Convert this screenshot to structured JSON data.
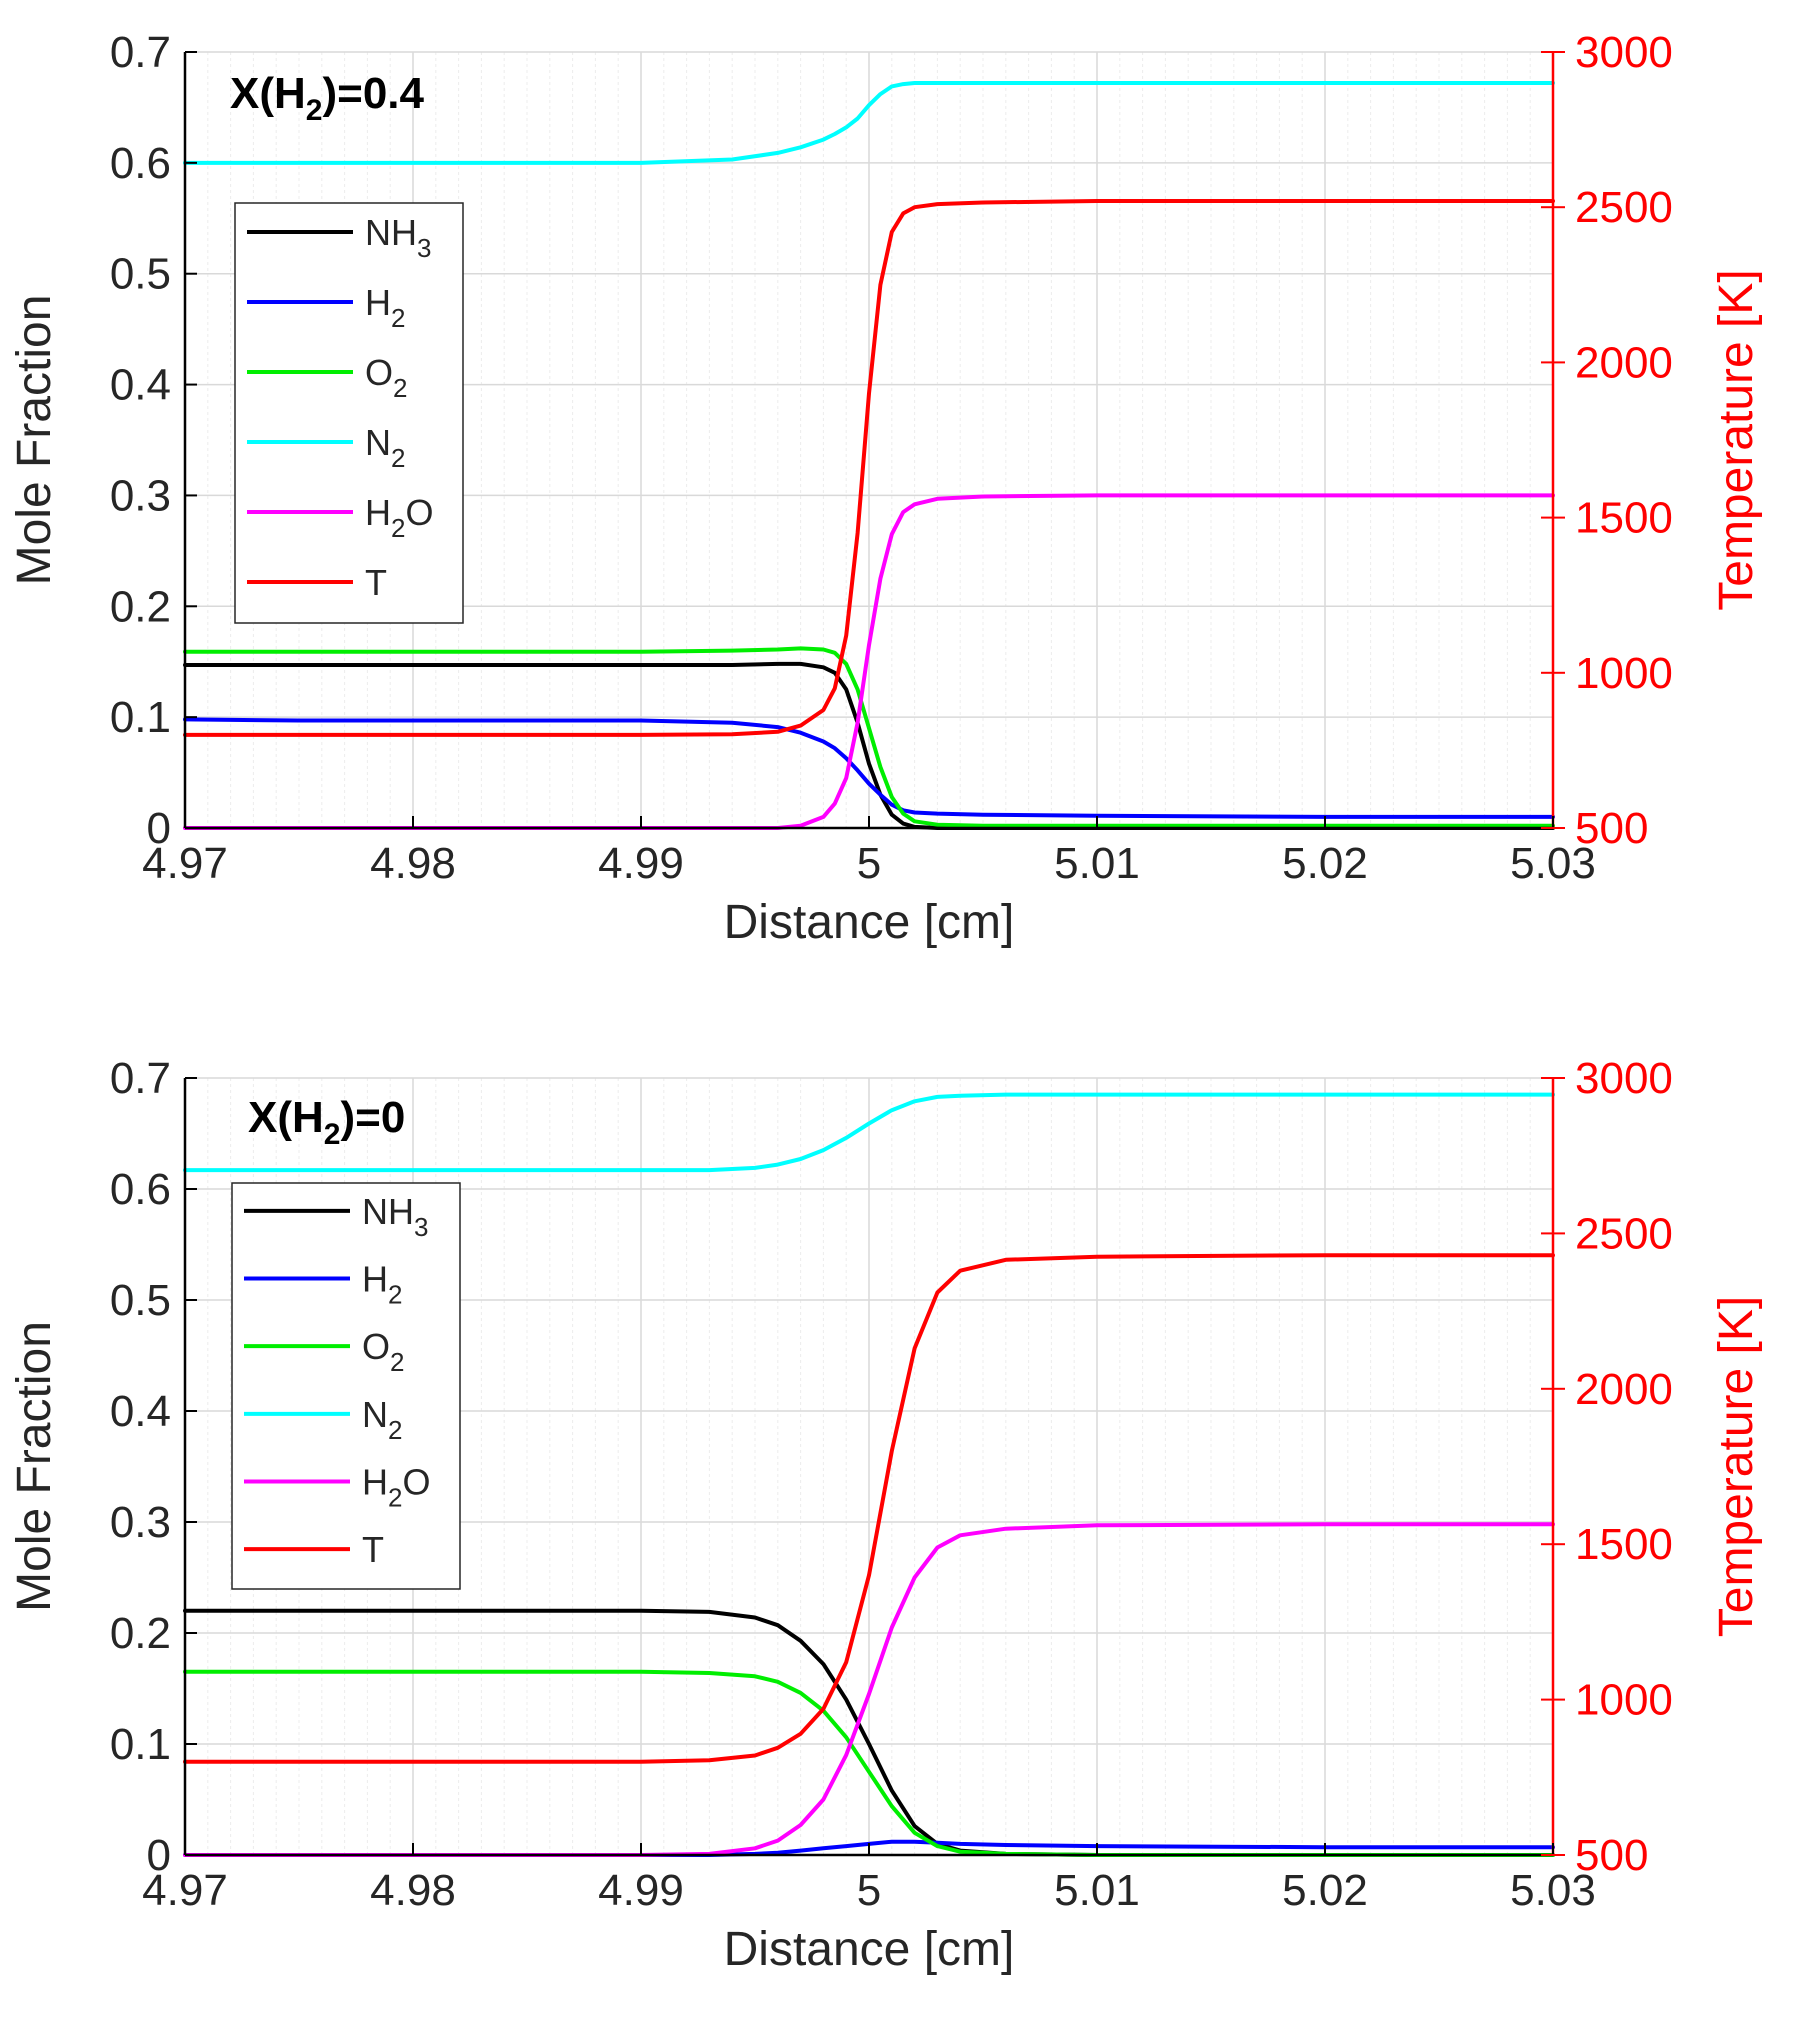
{
  "chart_data": [
    {
      "type": "line",
      "annotation": {
        "prefix": "X(H",
        "sub": "2",
        "suffix": ")=0.4"
      },
      "xlabel": "Distance [cm]",
      "ylabel": "Mole Fraction",
      "ylabel_right": "Temperature [K]",
      "xlim": [
        4.97,
        5.03
      ],
      "ylim": [
        0,
        0.7
      ],
      "ylim_right": [
        500,
        3000
      ],
      "x_ticks": [
        4.97,
        4.98,
        4.99,
        5.0,
        5.01,
        5.02,
        5.03
      ],
      "x_tick_labels": [
        "4.97",
        "4.98",
        "4.99",
        "5",
        "5.01",
        "5.02",
        "5.03"
      ],
      "y_ticks": [
        0,
        0.1,
        0.2,
        0.3,
        0.4,
        0.5,
        0.6,
        0.7
      ],
      "y_tick_labels": [
        "0",
        "0.1",
        "0.2",
        "0.3",
        "0.4",
        "0.5",
        "0.6",
        "0.7"
      ],
      "y_right_ticks": [
        500,
        1000,
        1500,
        2000,
        2500,
        3000
      ],
      "y_right_tick_labels": [
        "500",
        "1000",
        "1500",
        "2000",
        "2500",
        "3000"
      ],
      "grid": true,
      "legend_position": "upper-left",
      "x": [
        4.97,
        4.975,
        4.98,
        4.985,
        4.99,
        4.994,
        4.996,
        4.997,
        4.998,
        4.9985,
        4.999,
        4.9995,
        5.0,
        5.0005,
        5.001,
        5.0015,
        5.002,
        5.003,
        5.005,
        5.01,
        5.02,
        5.03
      ],
      "series": [
        {
          "name": "NH",
          "sub": "3",
          "tail": "",
          "axis": "left",
          "color": "#000000",
          "values": [
            0.147,
            0.147,
            0.147,
            0.147,
            0.147,
            0.147,
            0.148,
            0.148,
            0.145,
            0.14,
            0.125,
            0.095,
            0.058,
            0.03,
            0.012,
            0.004,
            0.001,
            0.0,
            0.0,
            0.0,
            0.0,
            0.0
          ]
        },
        {
          "name": "H",
          "sub": "2",
          "tail": "",
          "axis": "left",
          "color": "#0000ff",
          "values": [
            0.098,
            0.097,
            0.097,
            0.097,
            0.097,
            0.095,
            0.091,
            0.086,
            0.078,
            0.072,
            0.063,
            0.052,
            0.04,
            0.03,
            0.021,
            0.016,
            0.014,
            0.013,
            0.012,
            0.011,
            0.01,
            0.01
          ]
        },
        {
          "name": "O",
          "sub": "2",
          "tail": "",
          "axis": "left",
          "color": "#00ee00",
          "values": [
            0.159,
            0.159,
            0.159,
            0.159,
            0.159,
            0.16,
            0.161,
            0.162,
            0.161,
            0.158,
            0.148,
            0.125,
            0.09,
            0.055,
            0.028,
            0.013,
            0.006,
            0.003,
            0.002,
            0.002,
            0.002,
            0.002
          ]
        },
        {
          "name": "N",
          "sub": "2",
          "tail": "",
          "axis": "left",
          "color": "#00ffff",
          "values": [
            0.6,
            0.6,
            0.6,
            0.6,
            0.6,
            0.603,
            0.609,
            0.614,
            0.621,
            0.626,
            0.632,
            0.64,
            0.652,
            0.662,
            0.669,
            0.671,
            0.672,
            0.672,
            0.672,
            0.672,
            0.672,
            0.672
          ]
        },
        {
          "name": "H",
          "sub": "2",
          "tail": "O",
          "axis": "left",
          "color": "#ff00ff",
          "values": [
            0.0,
            0.0,
            0.0,
            0.0,
            0.0,
            0.0,
            0.0,
            0.002,
            0.01,
            0.022,
            0.045,
            0.095,
            0.165,
            0.225,
            0.265,
            0.285,
            0.292,
            0.297,
            0.299,
            0.3,
            0.3,
            0.3
          ]
        },
        {
          "name": "T",
          "sub": "",
          "tail": "",
          "axis": "right",
          "color": "#ff0000",
          "values": [
            800,
            800,
            800,
            800,
            800,
            802,
            810,
            830,
            880,
            950,
            1120,
            1450,
            1900,
            2250,
            2420,
            2480,
            2500,
            2510,
            2515,
            2520,
            2520,
            2520
          ]
        }
      ]
    },
    {
      "type": "line",
      "annotation": {
        "prefix": "X(H",
        "sub": "2",
        "suffix": ")=0"
      },
      "xlabel": "Distance [cm]",
      "ylabel": "Mole Fraction",
      "ylabel_right": "Temperature [K]",
      "xlim": [
        4.97,
        5.03
      ],
      "ylim": [
        0,
        0.7
      ],
      "ylim_right": [
        500,
        3000
      ],
      "x_ticks": [
        4.97,
        4.98,
        4.99,
        5.0,
        5.01,
        5.02,
        5.03
      ],
      "x_tick_labels": [
        "4.97",
        "4.98",
        "4.99",
        "5",
        "5.01",
        "5.02",
        "5.03"
      ],
      "y_ticks": [
        0,
        0.1,
        0.2,
        0.3,
        0.4,
        0.5,
        0.6,
        0.7
      ],
      "y_tick_labels": [
        "0",
        "0.1",
        "0.2",
        "0.3",
        "0.4",
        "0.5",
        "0.6",
        "0.7"
      ],
      "y_right_ticks": [
        500,
        1000,
        1500,
        2000,
        2500,
        3000
      ],
      "y_right_tick_labels": [
        "500",
        "1000",
        "1500",
        "2000",
        "2500",
        "3000"
      ],
      "grid": true,
      "legend_position": "upper-left",
      "x": [
        4.97,
        4.975,
        4.98,
        4.985,
        4.99,
        4.993,
        4.995,
        4.996,
        4.997,
        4.998,
        4.999,
        5.0,
        5.001,
        5.002,
        5.003,
        5.004,
        5.006,
        5.01,
        5.02,
        5.03
      ],
      "series": [
        {
          "name": "NH",
          "sub": "3",
          "tail": "",
          "axis": "left",
          "color": "#000000",
          "values": [
            0.22,
            0.22,
            0.22,
            0.22,
            0.22,
            0.219,
            0.214,
            0.207,
            0.193,
            0.172,
            0.14,
            0.1,
            0.058,
            0.026,
            0.01,
            0.004,
            0.001,
            0.0,
            0.0,
            0.0
          ]
        },
        {
          "name": "H",
          "sub": "2",
          "tail": "",
          "axis": "left",
          "color": "#0000ff",
          "values": [
            0.0,
            0.0,
            0.0,
            0.0,
            0.0,
            0.0,
            0.001,
            0.002,
            0.004,
            0.006,
            0.008,
            0.01,
            0.012,
            0.012,
            0.011,
            0.01,
            0.009,
            0.008,
            0.007,
            0.007
          ]
        },
        {
          "name": "O",
          "sub": "2",
          "tail": "",
          "axis": "left",
          "color": "#00ee00",
          "values": [
            0.165,
            0.165,
            0.165,
            0.165,
            0.165,
            0.164,
            0.161,
            0.156,
            0.146,
            0.13,
            0.106,
            0.075,
            0.044,
            0.02,
            0.008,
            0.003,
            0.001,
            0.0,
            0.0,
            0.0
          ]
        },
        {
          "name": "N",
          "sub": "2",
          "tail": "",
          "axis": "left",
          "color": "#00ffff",
          "values": [
            0.617,
            0.617,
            0.617,
            0.617,
            0.617,
            0.617,
            0.619,
            0.622,
            0.627,
            0.635,
            0.646,
            0.659,
            0.671,
            0.679,
            0.683,
            0.684,
            0.685,
            0.685,
            0.685,
            0.685
          ]
        },
        {
          "name": "H",
          "sub": "2",
          "tail": "O",
          "axis": "left",
          "color": "#ff00ff",
          "values": [
            0.0,
            0.0,
            0.0,
            0.0,
            0.0,
            0.001,
            0.006,
            0.013,
            0.027,
            0.05,
            0.09,
            0.145,
            0.205,
            0.25,
            0.277,
            0.288,
            0.294,
            0.297,
            0.298,
            0.298
          ]
        },
        {
          "name": "T",
          "sub": "",
          "tail": "",
          "axis": "right",
          "color": "#ff0000",
          "values": [
            800,
            800,
            800,
            800,
            800,
            805,
            820,
            845,
            890,
            970,
            1120,
            1400,
            1800,
            2130,
            2310,
            2380,
            2415,
            2425,
            2430,
            2430
          ]
        }
      ]
    }
  ]
}
